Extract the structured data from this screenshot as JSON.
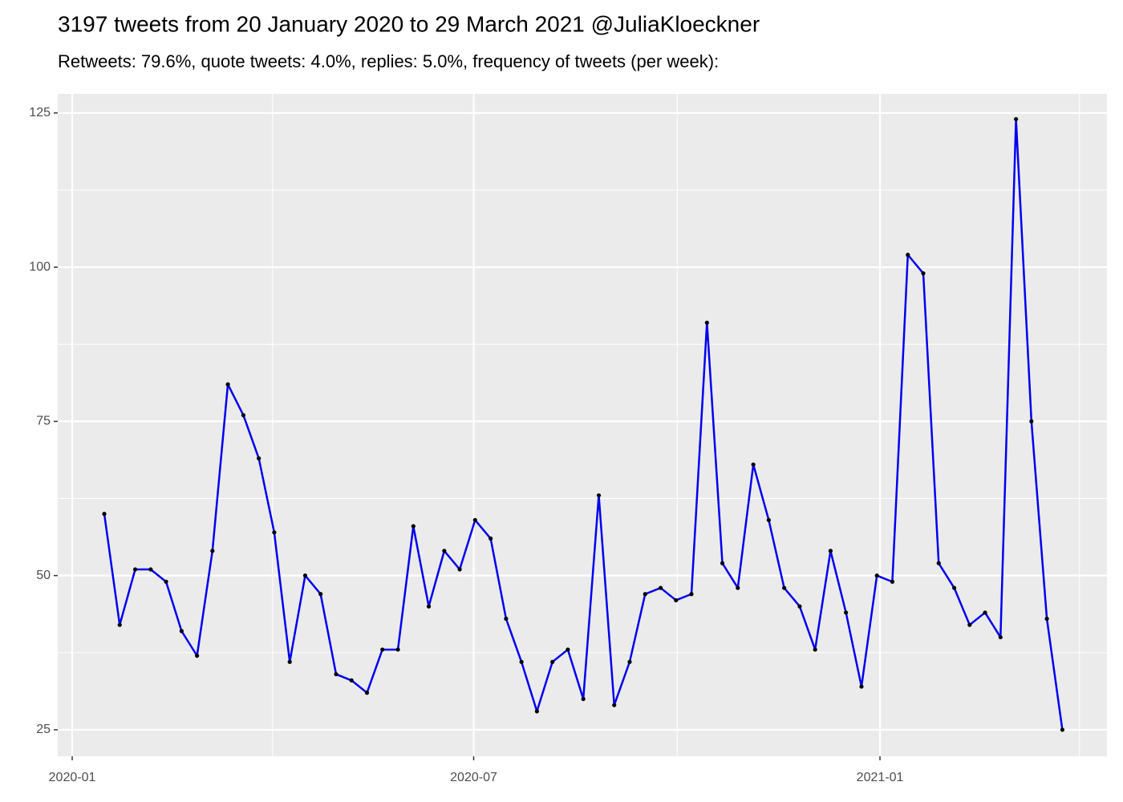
{
  "chart_data": {
    "type": "line",
    "title": "3197 tweets from 20 January 2020 to 29 March 2021 @JuliaKloeckner",
    "subtitle": "Retweets: 79.6%, quote tweets: 4.0%, replies: 5.0%, frequency of tweets (per week):",
    "x": [
      2020.0397,
      2020.0588,
      2020.078,
      2020.0971,
      2020.1162,
      2020.1354,
      2020.1545,
      2020.1736,
      2020.1927,
      2020.2119,
      2020.231,
      2020.2501,
      2020.2693,
      2020.2884,
      2020.3075,
      2020.3267,
      2020.3458,
      2020.3649,
      2020.384,
      2020.4032,
      2020.4223,
      2020.4414,
      2020.4606,
      2020.4797,
      2020.4988,
      2020.518,
      2020.5371,
      2020.5562,
      2020.5753,
      2020.5945,
      2020.6136,
      2020.6327,
      2020.6519,
      2020.671,
      2020.6901,
      2020.7093,
      2020.7284,
      2020.7475,
      2020.7666,
      2020.7858,
      2020.8049,
      2020.824,
      2020.8432,
      2020.8623,
      2020.8814,
      2020.9006,
      2020.9197,
      2020.9388,
      2020.9579,
      2020.9771,
      2020.9962,
      2021.0153,
      2021.0345,
      2021.0536,
      2021.0727,
      2021.0919,
      2021.111,
      2021.1301,
      2021.1492,
      2021.1684,
      2021.1875,
      2021.2066,
      2021.2258
    ],
    "series": [
      {
        "color": "#0000ee",
        "point_color": "#000000",
        "values": [
          60,
          42,
          51,
          51,
          49,
          41,
          37,
          54,
          81,
          76,
          69,
          57,
          36,
          50,
          47,
          34,
          33,
          31,
          38,
          38,
          58,
          45,
          54,
          51,
          59,
          56,
          43,
          36,
          28,
          36,
          38,
          30,
          63,
          29,
          36,
          47,
          48,
          46,
          47,
          91,
          52,
          48,
          68,
          59,
          48,
          45,
          38,
          54,
          44,
          32,
          50,
          49,
          102,
          99,
          52,
          48,
          42,
          44,
          40,
          124,
          75,
          43,
          25
        ]
      }
    ],
    "xlim": [
      2019.9821,
      2021.281
    ],
    "xticks": [
      {
        "value": 2020,
        "label": "2020-01"
      },
      {
        "value": 2020.497,
        "label": "2020-07"
      },
      {
        "value": 2021,
        "label": "2021-01"
      }
    ],
    "x_minor_ticks": [
      2020.248,
      2020.749,
      2021.247
    ],
    "ylim": [
      20.7,
      128.1
    ],
    "yticks": [
      25,
      50,
      75,
      100,
      125
    ],
    "y_minor_ticks": [
      37.5,
      62.5,
      87.5,
      112.5
    ],
    "grid": true
  }
}
